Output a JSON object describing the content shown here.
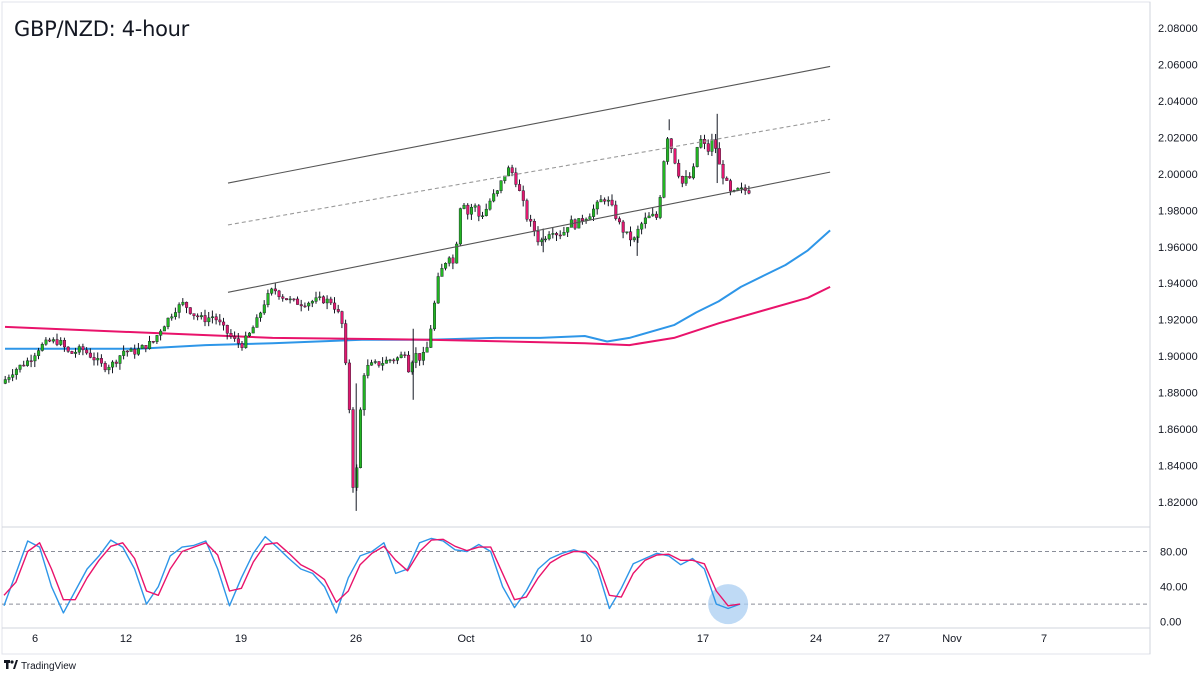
{
  "title": "GBP/NZD: 4-hour",
  "branding": {
    "logo_icon": "tradingview-logo-icon",
    "text": "TradingView"
  },
  "colors": {
    "bull": "#22b522",
    "bear": "#e0186f",
    "wick": "#131722",
    "sma_blue": "#2e96e8",
    "sma_pink": "#e9136b",
    "stoch_k": "#2e96e8",
    "stoch_d": "#e9136b",
    "channel": "#555555",
    "highlight": "#a9cdf1"
  },
  "chart_data": [
    {
      "type": "candlestick",
      "title": "GBP/NZD: 4-hour",
      "y_axis": {
        "side": "right",
        "ylim": [
          1.81,
          2.09
        ],
        "ticks": [
          "2.08000",
          "2.06000",
          "2.04000",
          "2.02000",
          "2.00000",
          "1.98000",
          "1.96000",
          "1.94000",
          "1.92000",
          "1.90000",
          "1.88000",
          "1.86000",
          "1.84000",
          "1.82000"
        ]
      },
      "x_axis": {
        "ticks": [
          "6",
          "12",
          "19",
          "26",
          "Oct",
          "10",
          "17",
          "24",
          "27",
          "Nov",
          "7"
        ]
      },
      "grid": false,
      "price_path": [
        [
          0,
          1.885
        ],
        [
          12,
          1.892
        ],
        [
          28,
          1.898
        ],
        [
          38,
          1.905
        ],
        [
          48,
          1.908
        ],
        [
          58,
          1.908
        ],
        [
          68,
          1.901
        ],
        [
          80,
          1.904
        ],
        [
          92,
          1.899
        ],
        [
          102,
          1.894
        ],
        [
          112,
          1.896
        ],
        [
          122,
          1.903
        ],
        [
          132,
          1.902
        ],
        [
          142,
          1.905
        ],
        [
          152,
          1.908
        ],
        [
          158,
          1.914
        ],
        [
          166,
          1.92
        ],
        [
          174,
          1.926
        ],
        [
          182,
          1.929
        ],
        [
          192,
          1.923
        ],
        [
          202,
          1.92
        ],
        [
          212,
          1.922
        ],
        [
          222,
          1.915
        ],
        [
          232,
          1.909
        ],
        [
          240,
          1.906
        ],
        [
          248,
          1.912
        ],
        [
          256,
          1.92
        ],
        [
          264,
          1.931
        ],
        [
          272,
          1.937
        ],
        [
          280,
          1.933
        ],
        [
          290,
          1.93
        ],
        [
          300,
          1.929
        ],
        [
          310,
          1.93
        ],
        [
          320,
          1.931
        ],
        [
          330,
          1.93
        ],
        [
          340,
          1.92
        ],
        [
          344,
          1.895
        ],
        [
          348,
          1.87
        ],
        [
          351,
          1.83
        ],
        [
          354,
          1.826
        ],
        [
          358,
          1.865
        ],
        [
          363,
          1.893
        ],
        [
          370,
          1.895
        ],
        [
          378,
          1.896
        ],
        [
          388,
          1.898
        ],
        [
          398,
          1.899
        ],
        [
          404,
          1.903
        ],
        [
          408,
          1.89
        ],
        [
          412,
          1.902
        ],
        [
          420,
          1.898
        ],
        [
          426,
          1.905
        ],
        [
          432,
          1.925
        ],
        [
          436,
          1.941
        ],
        [
          442,
          1.95
        ],
        [
          448,
          1.956
        ],
        [
          452,
          1.95
        ],
        [
          456,
          1.967
        ],
        [
          460,
          1.989
        ],
        [
          466,
          1.978
        ],
        [
          472,
          1.984
        ],
        [
          478,
          1.976
        ],
        [
          484,
          1.98
        ],
        [
          490,
          1.987
        ],
        [
          496,
          1.99
        ],
        [
          500,
          1.996
        ],
        [
          506,
          2.003
        ],
        [
          512,
          2.0
        ],
        [
          518,
          1.99
        ],
        [
          522,
          1.983
        ],
        [
          526,
          1.975
        ],
        [
          532,
          1.97
        ],
        [
          538,
          1.962
        ],
        [
          544,
          1.966
        ],
        [
          550,
          1.97
        ],
        [
          556,
          1.967
        ],
        [
          562,
          1.968
        ],
        [
          568,
          1.974
        ],
        [
          574,
          1.972
        ],
        [
          580,
          1.975
        ],
        [
          588,
          1.978
        ],
        [
          596,
          1.983
        ],
        [
          602,
          1.987
        ],
        [
          608,
          1.984
        ],
        [
          614,
          1.977
        ],
        [
          620,
          1.97
        ],
        [
          626,
          1.966
        ],
        [
          632,
          1.963
        ],
        [
          638,
          1.971
        ],
        [
          644,
          1.975
        ],
        [
          650,
          1.977
        ],
        [
          656,
          1.976
        ],
        [
          662,
          2.005
        ],
        [
          664,
          2.024
        ],
        [
          670,
          2.014
        ],
        [
          676,
          2.002
        ],
        [
          682,
          1.993
        ],
        [
          686,
          2.0
        ],
        [
          690,
          1.996
        ],
        [
          696,
          2.016
        ],
        [
          700,
          2.019
        ],
        [
          706,
          2.012
        ],
        [
          712,
          2.02
        ],
        [
          718,
          2.004
        ],
        [
          724,
          1.996
        ],
        [
          730,
          1.988
        ],
        [
          736,
          1.991
        ],
        [
          744,
          1.991
        ]
      ],
      "channel": {
        "upper": [
          [
            10,
            1.995
          ],
          [
            37,
            2.059
          ]
        ],
        "middle": [
          [
            10,
            1.972
          ],
          [
            37,
            2.03
          ]
        ],
        "lower": [
          [
            10,
            1.935
          ],
          [
            37,
            2.001
          ]
        ]
      },
      "series": [
        {
          "name": "",
          "kind": "moving-average-blue",
          "points": [
            [
              0,
              1.904
            ],
            [
              6,
              1.904
            ],
            [
              9,
              1.906
            ],
            [
              12,
              1.907
            ],
            [
              14,
              1.908
            ],
            [
              16,
              1.909
            ],
            [
              19,
              1.909
            ],
            [
              22,
              1.91
            ],
            [
              24,
              1.91
            ],
            [
              26,
              1.911
            ],
            [
              27,
              1.908
            ],
            [
              28,
              1.91
            ],
            [
              30,
              1.917
            ],
            [
              31,
              1.924
            ],
            [
              32,
              1.93
            ],
            [
              33,
              1.938
            ],
            [
              34,
              1.944
            ],
            [
              35,
              1.95
            ],
            [
              36,
              1.958
            ],
            [
              37,
              1.969
            ]
          ]
        },
        {
          "name": "",
          "kind": "moving-average-pink",
          "points": [
            [
              0,
              1.916
            ],
            [
              6,
              1.913
            ],
            [
              12,
              1.91
            ],
            [
              19,
              1.909
            ],
            [
              26,
              1.907
            ],
            [
              28,
              1.906
            ],
            [
              30,
              1.91
            ],
            [
              32,
              1.918
            ],
            [
              34,
              1.925
            ],
            [
              36,
              1.932
            ],
            [
              37,
              1.938
            ]
          ]
        }
      ]
    },
    {
      "type": "line",
      "indicator": "stochastic",
      "y_axis": {
        "ylim": [
          -5,
          100
        ],
        "ticks": [
          "80.00",
          "40.00",
          "0.00"
        ],
        "levels": [
          80,
          20
        ]
      },
      "series": [
        {
          "name": "",
          "kind": "%K",
          "points": [
            [
              0,
              18
            ],
            [
              1,
              55
            ],
            [
              2,
              92
            ],
            [
              3,
              85
            ],
            [
              4,
              40
            ],
            [
              5,
              10
            ],
            [
              6,
              35
            ],
            [
              7,
              60
            ],
            [
              8,
              75
            ],
            [
              9,
              93
            ],
            [
              10,
              85
            ],
            [
              11,
              60
            ],
            [
              12,
              20
            ],
            [
              13,
              40
            ],
            [
              14,
              75
            ],
            [
              15,
              85
            ],
            [
              16,
              87
            ],
            [
              17,
              92
            ],
            [
              18,
              60
            ],
            [
              19,
              18
            ],
            [
              20,
              50
            ],
            [
              21,
              78
            ],
            [
              22,
              97
            ],
            [
              23,
              85
            ],
            [
              24,
              72
            ],
            [
              25,
              60
            ],
            [
              26,
              55
            ],
            [
              27,
              40
            ],
            [
              28,
              10
            ],
            [
              29,
              50
            ],
            [
              30,
              75
            ],
            [
              31,
              80
            ],
            [
              32,
              90
            ],
            [
              33,
              55
            ],
            [
              34,
              60
            ],
            [
              35,
              90
            ],
            [
              36,
              95
            ],
            [
              37,
              92
            ],
            [
              38,
              82
            ],
            [
              39,
              80
            ],
            [
              40,
              88
            ],
            [
              41,
              80
            ],
            [
              42,
              40
            ],
            [
              43,
              16
            ],
            [
              44,
              35
            ],
            [
              45,
              60
            ],
            [
              46,
              72
            ],
            [
              47,
              78
            ],
            [
              48,
              82
            ],
            [
              49,
              78
            ],
            [
              50,
              60
            ],
            [
              51,
              15
            ],
            [
              52,
              38
            ],
            [
              53,
              66
            ],
            [
              54,
              72
            ],
            [
              55,
              78
            ],
            [
              56,
              75
            ],
            [
              57,
              65
            ],
            [
              58,
              72
            ],
            [
              59,
              60
            ],
            [
              60,
              20
            ],
            [
              61,
              15
            ],
            [
              62,
              20
            ]
          ]
        },
        {
          "name": "",
          "kind": "%D",
          "points": [
            [
              0,
              30
            ],
            [
              1,
              45
            ],
            [
              2,
              80
            ],
            [
              3,
              90
            ],
            [
              4,
              60
            ],
            [
              5,
              25
            ],
            [
              6,
              25
            ],
            [
              7,
              50
            ],
            [
              8,
              70
            ],
            [
              9,
              86
            ],
            [
              10,
              90
            ],
            [
              11,
              72
            ],
            [
              12,
              35
            ],
            [
              13,
              30
            ],
            [
              14,
              60
            ],
            [
              15,
              80
            ],
            [
              16,
              85
            ],
            [
              17,
              90
            ],
            [
              18,
              76
            ],
            [
              19,
              35
            ],
            [
              20,
              38
            ],
            [
              21,
              68
            ],
            [
              22,
              88
            ],
            [
              23,
              90
            ],
            [
              24,
              78
            ],
            [
              25,
              65
            ],
            [
              26,
              58
            ],
            [
              27,
              48
            ],
            [
              28,
              22
            ],
            [
              29,
              35
            ],
            [
              30,
              65
            ],
            [
              31,
              78
            ],
            [
              32,
              86
            ],
            [
              33,
              70
            ],
            [
              34,
              58
            ],
            [
              35,
              80
            ],
            [
              36,
              93
            ],
            [
              37,
              94
            ],
            [
              38,
              86
            ],
            [
              39,
              81
            ],
            [
              40,
              85
            ],
            [
              41,
              85
            ],
            [
              42,
              55
            ],
            [
              43,
              25
            ],
            [
              44,
              28
            ],
            [
              45,
              50
            ],
            [
              46,
              67
            ],
            [
              47,
              75
            ],
            [
              48,
              80
            ],
            [
              49,
              80
            ],
            [
              50,
              68
            ],
            [
              51,
              30
            ],
            [
              52,
              28
            ],
            [
              53,
              55
            ],
            [
              54,
              70
            ],
            [
              55,
              76
            ],
            [
              56,
              77
            ],
            [
              57,
              70
            ],
            [
              58,
              70
            ],
            [
              59,
              66
            ],
            [
              60,
              35
            ],
            [
              61,
              18
            ],
            [
              62,
              20
            ]
          ]
        }
      ]
    }
  ]
}
